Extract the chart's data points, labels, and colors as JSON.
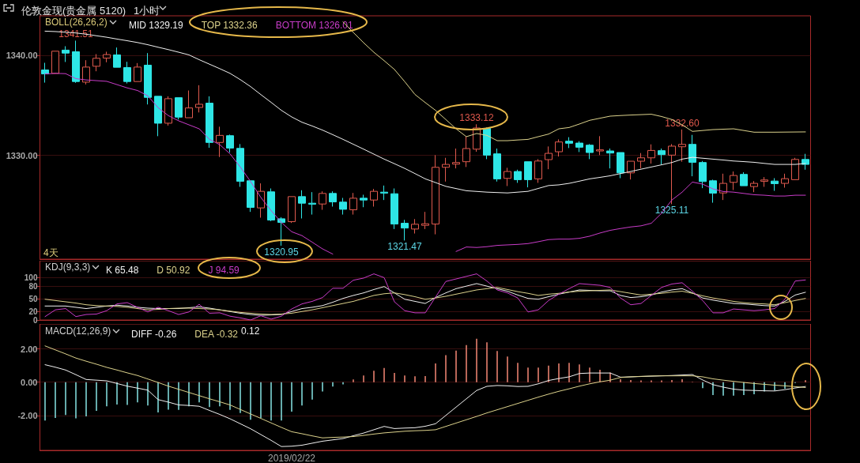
{
  "chart_data": [
    {
      "type": "candlestick",
      "title": "伦敦金现(贵金属 5120)",
      "subtitle": "1小时",
      "categories": [
        null,
        null,
        null,
        null,
        null,
        null,
        null,
        null,
        null,
        null,
        null,
        null,
        null,
        null,
        null,
        null,
        null,
        null,
        null,
        null,
        null,
        null,
        null,
        null,
        null,
        null,
        null,
        null,
        null,
        null,
        null,
        null,
        null,
        null,
        null,
        null,
        null,
        null,
        null,
        null,
        null,
        null,
        null,
        null,
        null,
        null,
        null,
        null,
        null,
        null,
        null,
        null,
        null,
        null,
        null,
        null,
        null,
        null,
        null,
        null,
        null,
        null,
        null,
        null,
        null,
        null,
        null,
        null,
        null,
        null,
        null,
        null,
        null,
        null,
        null
      ],
      "ohlc": [
        [
          1338.57,
          1339.29,
          1337.3,
          1338.17
        ],
        [
          1338.23,
          1340.45,
          1338.2,
          1340.45
        ],
        [
          1340.56,
          1340.95,
          1339.37,
          1340.26
        ],
        [
          1340.4,
          1341.51,
          1337.28,
          1337.41
        ],
        [
          1337.35,
          1339.55,
          1337.12,
          1338.86
        ],
        [
          1338.94,
          1340.16,
          1338.44,
          1339.74
        ],
        [
          1339.76,
          1340.4,
          1339.34,
          1340.11
        ],
        [
          1340.08,
          1340.82,
          1338.84,
          1338.84
        ],
        [
          1338.81,
          1339.39,
          1337.22,
          1337.41
        ],
        [
          1337.41,
          1339.26,
          1337.41,
          1338.86
        ],
        [
          1339.05,
          1340.26,
          1335.11,
          1335.82
        ],
        [
          1335.93,
          1335.93,
          1331.93,
          1333.23
        ],
        [
          1333.23,
          1335.93,
          1332.99,
          1335.69
        ],
        [
          1335.79,
          1335.79,
          1333.6,
          1333.84
        ],
        [
          1333.78,
          1336.51,
          1333.78,
          1334.76
        ],
        [
          1334.81,
          1337.04,
          1334.31,
          1335.13
        ],
        [
          1335.24,
          1335.93,
          1330.77,
          1331.3
        ],
        [
          1331.3,
          1332.88,
          1329.84,
          1332.01
        ],
        [
          1331.98,
          1332.09,
          1330.29,
          1330.74
        ],
        [
          1330.71,
          1331.14,
          1326.85,
          1327.41
        ],
        [
          1327.46,
          1327.46,
          1324.34,
          1324.79
        ],
        [
          1324.74,
          1327.2,
          1323.76,
          1326.4
        ],
        [
          1326.35,
          1326.69,
          1323.41,
          1323.52
        ],
        [
          1323.65,
          1323.81,
          1320.95,
          1323.28
        ],
        [
          1323.36,
          1325.87,
          1323.23,
          1325.87
        ],
        [
          1325.87,
          1326.51,
          1323.68,
          1325.21
        ],
        [
          1325.21,
          1326.32,
          1324.07,
          1325.11
        ],
        [
          1325.13,
          1326.4,
          1324.55,
          1326.19
        ],
        [
          1326.19,
          1326.4,
          1324.87,
          1325.34
        ],
        [
          1325.32,
          1325.74,
          1324.07,
          1324.6
        ],
        [
          1324.55,
          1326.24,
          1324.07,
          1325.71
        ],
        [
          1325.71,
          1326.06,
          1324.81,
          1325.53
        ],
        [
          1325.53,
          1326.64,
          1324.87,
          1326.4
        ],
        [
          1326.32,
          1326.98,
          1325.53,
          1326.22
        ],
        [
          1326.16,
          1326.69,
          1322.62,
          1323.12
        ],
        [
          1323.2,
          1323.54,
          1321.47,
          1322.72
        ],
        [
          1322.62,
          1323.62,
          1322.17,
          1323.1
        ],
        [
          1322.99,
          1324.34,
          1322.62,
          1323.15
        ],
        [
          1323.12,
          1330.03,
          1322.09,
          1328.81
        ],
        [
          1328.81,
          1329.76,
          1327.38,
          1329.1
        ],
        [
          1329.13,
          1330.69,
          1328.7,
          1329.29
        ],
        [
          1329.37,
          1331.88,
          1328.84,
          1330.69
        ],
        [
          1330.63,
          1333.12,
          1330.37,
          1332.75
        ],
        [
          1332.72,
          1332.8,
          1329.63,
          1330.03
        ],
        [
          1330.16,
          1330.69,
          1327.38,
          1327.65
        ],
        [
          1327.7,
          1328.76,
          1326.93,
          1328.39
        ],
        [
          1328.39,
          1328.57,
          1327.25,
          1327.57
        ],
        [
          1329.37,
          1329.37,
          1326.8,
          1327.57
        ],
        [
          1327.65,
          1329.63,
          1327.25,
          1329.44
        ],
        [
          1329.58,
          1330.9,
          1328.62,
          1330.21
        ],
        [
          1330.37,
          1331.61,
          1329.89,
          1331.35
        ],
        [
          1331.43,
          1331.83,
          1330.74,
          1331.22
        ],
        [
          1331.24,
          1331.43,
          1330.34,
          1330.82
        ],
        [
          1331.03,
          1331.14,
          1329.63,
          1330.29
        ],
        [
          1330.45,
          1331.93,
          1330.03,
          1330.56
        ],
        [
          1330.45,
          1330.69,
          1328.7,
          1330.24
        ],
        [
          1330.29,
          1330.29,
          1327.72,
          1328.25
        ],
        [
          1328.25,
          1329.42,
          1327.59,
          1329.42
        ],
        [
          1329.42,
          1330.24,
          1328.7,
          1329.76
        ],
        [
          1329.76,
          1331.11,
          1329.18,
          1330.5
        ],
        [
          1330.48,
          1330.69,
          1329.1,
          1330.08
        ],
        [
          1330.03,
          1331.14,
          1325.11,
          1330.93
        ],
        [
          1330.87,
          1332.6,
          1329.37,
          1331.11
        ],
        [
          1331.11,
          1332.06,
          1327.91,
          1329.31
        ],
        [
          1329.29,
          1329.44,
          1326.72,
          1327.38
        ],
        [
          1327.46,
          1327.57,
          1325.26,
          1326.22
        ],
        [
          1326.24,
          1328.17,
          1325.53,
          1327.2
        ],
        [
          1327.3,
          1328.39,
          1326.53,
          1327.99
        ],
        [
          1328.1,
          1328.31,
          1326.96,
          1326.96
        ],
        [
          1326.88,
          1327.43,
          1326.32,
          1327.2
        ],
        [
          1327.41,
          1327.83,
          1326.85,
          1327.54
        ],
        [
          1327.43,
          1327.72,
          1326.45,
          1327.17
        ],
        [
          1327.2,
          1328.17,
          1326.77,
          1327.67
        ],
        [
          1327.57,
          1329.76,
          1327.57,
          1329.6
        ],
        [
          1329.6,
          1330.16,
          1328.57,
          1329.1
        ]
      ],
      "colors": [
        "#2ee6e6",
        "#e05a4e",
        "#2ee6e6",
        "#2ee6e6",
        "#e05a4e",
        "#e05a4e",
        "#e05a4e",
        "#2ee6e6",
        "#2ee6e6",
        "#e05a4e",
        "#2ee6e6",
        "#2ee6e6",
        "#e05a4e",
        "#2ee6e6",
        "#e05a4e",
        "#e05a4e",
        "#2ee6e6",
        "#e05a4e",
        "#2ee6e6",
        "#2ee6e6",
        "#2ee6e6",
        "#e05a4e",
        "#2ee6e6",
        "#2ee6e6",
        "#e05a4e",
        "#2ee6e6",
        "#2ee6e6",
        "#e05a4e",
        "#2ee6e6",
        "#2ee6e6",
        "#e05a4e",
        "#2ee6e6",
        "#e05a4e",
        "#2ee6e6",
        "#2ee6e6",
        "#2ee6e6",
        "#e05a4e",
        "#e05a4e",
        "#e05a4e",
        "#e05a4e",
        "#e05a4e",
        "#e05a4e",
        "#e05a4e",
        "#2ee6e6",
        "#2ee6e6",
        "#e05a4e",
        "#2ee6e6",
        "#2ee6e6",
        "#e05a4e",
        "#e05a4e",
        "#e05a4e",
        "#2ee6e6",
        "#2ee6e6",
        "#2ee6e6",
        "#e05a4e",
        "#2ee6e6",
        "#2ee6e6",
        "#e05a4e",
        "#e05a4e",
        "#e05a4e",
        "#2ee6e6",
        "#e05a4e",
        "#e05a4e",
        "#2ee6e6",
        "#2ee6e6",
        "#2ee6e6",
        "#e05a4e",
        "#e05a4e",
        "#2ee6e6",
        "#e05a4e",
        "#e05a4e",
        "#2ee6e6",
        "#e05a4e",
        "#e05a4e",
        "#2ee6e6"
      ],
      "series": [
        {
          "name": "MID 1329.19",
          "type": "line",
          "color": "#f0f0f0",
          "values": [
            1342.46,
            1342.42,
            1342.35,
            1342.28,
            1342.15,
            1342.0,
            1341.85,
            1341.67,
            1341.5,
            1341.32,
            1341.1,
            1340.85,
            1340.61,
            1340.35,
            1340.08,
            1339.6,
            1339.15,
            1338.7,
            1338.23,
            1337.6,
            1336.9,
            1336.1,
            1335.32,
            1334.52,
            1333.86,
            1333.33,
            1332.95,
            1332.54,
            1332.08,
            1331.61,
            1331.12,
            1330.63,
            1330.13,
            1329.63,
            1329.17,
            1328.7,
            1328.18,
            1327.65,
            1327.28,
            1326.9,
            1326.68,
            1326.46,
            1326.39,
            1326.32,
            1326.28,
            1326.24,
            1326.32,
            1326.4,
            1326.69,
            1326.98,
            1327.05,
            1327.2,
            1327.42,
            1327.65,
            1327.8,
            1327.96,
            1328.18,
            1328.39,
            1328.62,
            1328.84,
            1329.06,
            1329.29,
            1329.63,
            1329.81,
            1329.72,
            1329.63,
            1329.54,
            1329.44,
            1329.38,
            1329.31,
            1329.2,
            1329.1,
            1329.1,
            1329.1,
            1329.19
          ]
        },
        {
          "name": "TOP 1332.36",
          "type": "line",
          "color": "#dcd28c",
          "values": [
            null,
            null,
            null,
            null,
            null,
            null,
            null,
            null,
            null,
            null,
            null,
            null,
            null,
            null,
            null,
            null,
            null,
            null,
            null,
            null,
            null,
            null,
            null,
            null,
            null,
            null,
            null,
            null,
            null,
            1343.39,
            1342.33,
            1341.3,
            1340.34,
            1339.5,
            1338.62,
            1337.4,
            1336.11,
            1335.3,
            1334.52,
            1333.6,
            1332.67,
            1331.88,
            1332.2,
            1332.01,
            1331.48,
            1331.48,
            1331.55,
            1331.61,
            1331.88,
            1332.14,
            1332.67,
            1332.8,
            1333.15,
            1333.52,
            1333.73,
            1333.94,
            1334.0,
            1334.05,
            1334.09,
            1334.13,
            1333.9,
            1333.6,
            1333.07,
            1332.41,
            1332.5,
            1332.59,
            1332.63,
            1332.67,
            1332.5,
            1332.33,
            1332.33,
            1332.33,
            1332.34,
            1332.35,
            1332.36
          ]
        },
        {
          "name": "BOTTOM 1326.01",
          "type": "line",
          "color": "#c83cc8",
          "values": [
            1338.17,
            1338.23,
            1338.2,
            1337.7,
            1337.57,
            1337.5,
            1337.43,
            1337.1,
            1336.77,
            1336.51,
            1335.98,
            1334.79,
            1333.99,
            1333.47,
            1333.07,
            1332.67,
            1331.61,
            1331.08,
            1330.16,
            1328.84,
            1327.38,
            1325.79,
            1324.47,
            1323.28,
            1322.35,
            1321.96,
            1321.3,
            1320.63,
            1320.11,
            null,
            null,
            null,
            null,
            null,
            null,
            null,
            null,
            null,
            null,
            null,
            1320.37,
            1320.82,
            1320.77,
            1320.85,
            1320.98,
            1321.03,
            1321.08,
            1321.16,
            1321.35,
            1321.56,
            1321.61,
            1321.61,
            1321.69,
            1321.9,
            1322.22,
            1322.49,
            1322.67,
            1322.83,
            1322.94,
            1323.2,
            1324.21,
            1325.53,
            1326.32,
            1327.33,
            1327.12,
            1326.64,
            1326.38,
            1326.32,
            1326.19,
            1326.06,
            1326.01,
            1325.93,
            1325.93,
            1326.01,
            1326.01
          ]
        }
      ],
      "ylim": [
        1319.6,
        1344.0
      ],
      "yticks": [
        {
          "value": 1330,
          "label": "1330.00"
        },
        {
          "value": 1340,
          "label": "1340.00"
        }
      ],
      "annotations": [
        "BOLL(26,26,2)",
        "4天",
        {
          "text": "1341.51",
          "y": 1341.51
        },
        {
          "text": "1333.12",
          "y": 1333.12
        },
        {
          "text": "1332.60",
          "y": 1332.6
        },
        {
          "text": "1320.95",
          "y": 1320.95
        },
        {
          "text": "1321.47",
          "y": 1321.47
        },
        {
          "text": "1325.11",
          "y": 1325.11
        }
      ],
      "grid": "y",
      "legend": "top left",
      "tick_labels": "y",
      "marker": "none",
      "line_style": "solid"
    },
    {
      "type": "line",
      "categories": [
        null,
        null,
        null,
        null,
        null,
        null,
        null,
        null,
        null,
        null,
        null,
        null,
        null,
        null,
        null,
        null,
        null,
        null,
        null,
        null,
        null,
        null,
        null,
        null,
        null,
        null,
        null,
        null,
        null,
        null,
        null,
        null,
        null,
        null,
        null,
        null,
        null,
        null,
        null,
        null,
        null,
        null,
        null,
        null,
        null,
        null,
        null,
        null,
        null,
        null,
        null,
        null,
        null,
        null,
        null,
        null,
        null,
        null,
        null,
        null,
        null,
        null,
        null,
        null,
        null,
        null,
        null,
        null,
        null,
        null,
        null,
        null,
        null,
        null,
        null
      ],
      "series": [
        {
          "name": "K 65.48",
          "color": "#f0f0f0",
          "values": [
            33,
            33,
            33,
            30,
            27,
            30,
            33,
            35,
            33,
            30,
            28,
            27,
            27,
            27,
            29,
            31,
            28,
            24,
            20,
            16,
            13,
            11,
            12,
            13,
            20,
            27,
            30,
            34,
            42,
            51,
            58,
            64,
            72,
            79,
            64,
            49,
            44,
            39,
            53,
            64,
            74,
            80,
            86,
            80,
            74,
            68,
            59,
            51,
            49,
            55,
            61,
            66,
            71,
            70,
            69,
            69,
            58,
            53,
            55,
            59,
            66,
            71,
            74,
            64,
            52,
            47,
            43,
            39,
            38,
            36,
            34,
            33,
            44,
            59,
            65.48
          ]
        },
        {
          "name": "D 50.92",
          "color": "#dcd28c",
          "values": [
            49,
            46,
            43,
            40,
            36,
            34,
            33,
            32,
            30,
            27,
            24,
            25,
            27,
            28,
            28,
            27,
            26,
            24,
            21,
            18,
            16,
            14,
            13,
            14,
            16,
            20,
            24,
            29,
            34,
            39,
            44,
            51,
            58,
            62,
            64,
            60,
            55,
            49,
            52,
            56,
            61,
            66,
            71,
            74,
            77,
            72,
            67,
            63,
            58,
            61,
            63,
            66,
            68,
            69,
            70,
            71,
            67,
            63,
            59,
            61,
            63,
            66,
            68,
            63,
            57,
            52,
            48,
            44,
            41,
            39,
            38,
            36,
            41,
            46,
            50.92
          ]
        },
        {
          "name": "J 94.59",
          "color": "#c83cc8",
          "values": [
            8,
            24,
            27,
            8,
            13,
            14,
            22,
            38,
            41,
            30,
            19,
            30,
            22,
            13,
            19,
            37,
            16,
            17,
            9,
            5,
            0,
            10,
            2,
            9,
            26,
            38,
            44,
            53,
            75,
            75,
            94,
            99,
            109,
            100,
            43,
            22,
            17,
            17,
            54,
            91,
            97,
            103,
            109,
            92,
            71,
            64,
            52,
            19,
            24,
            46,
            61,
            74,
            86,
            84,
            82,
            77,
            52,
            36,
            39,
            58,
            77,
            85,
            88,
            68,
            46,
            17,
            17,
            26,
            24,
            22,
            24,
            27,
            49,
            92,
            94.59
          ]
        }
      ],
      "ylim": [
        0,
        140
      ],
      "yticks": [
        0,
        20,
        50,
        80,
        100
      ],
      "annotations": [
        "KDJ(9,3,3)"
      ],
      "grid": "y",
      "legend": "top left",
      "tick_labels": "y",
      "marker": "none",
      "line_style": "solid"
    },
    {
      "type": "bar",
      "categories": [
        null,
        null,
        null,
        null,
        null,
        null,
        null,
        null,
        null,
        null,
        null,
        null,
        null,
        null,
        null,
        null,
        null,
        null,
        null,
        null,
        null,
        null,
        null,
        null,
        "2019/02/22",
        null,
        null,
        null,
        null,
        null,
        null,
        null,
        null,
        null,
        null,
        null,
        null,
        null,
        null,
        null,
        null,
        null,
        null,
        null,
        null,
        null,
        null,
        null,
        null,
        null,
        null,
        null,
        null,
        null,
        null,
        null,
        null,
        null,
        null,
        null,
        null,
        null,
        null,
        null,
        null,
        null,
        null,
        null,
        null,
        null,
        null,
        null,
        null,
        null,
        null
      ],
      "series": [
        {
          "type": "bar",
          "colors": [
            "#7fd8d8",
            "#7fd8d8",
            "#7fd8d8",
            "#7fd8d8",
            "#7fd8d8",
            "#7fd8d8",
            "#7fd8d8",
            "#7fd8d8",
            "#7fd8d8",
            "#7fd8d8",
            "#7fd8d8",
            "#7fd8d8",
            "#7fd8d8",
            "#7fd8d8",
            "#7fd8d8",
            "#7fd8d8",
            "#7fd8d8",
            "#7fd8d8",
            "#7fd8d8",
            "#7fd8d8",
            "#7fd8d8",
            "#7fd8d8",
            "#7fd8d8",
            "#7fd8d8",
            "#7fd8d8",
            "#7fd8d8",
            "#7fd8d8",
            "#7fd8d8",
            "#7fd8d8",
            "#7fd8d8",
            "#e8806f",
            "#e8806f",
            "#e8806f",
            "#e8806f",
            "#e8806f",
            "#e8806f",
            "#e8806f",
            "#e8806f",
            "#e8806f",
            "#e8806f",
            "#e8806f",
            "#e8806f",
            "#e8806f",
            "#e8806f",
            "#e8806f",
            "#e8806f",
            "#e8806f",
            "#e8806f",
            "#e8806f",
            "#e8806f",
            "#e8806f",
            "#e8806f",
            "#e8806f",
            "#e8806f",
            "#e8806f",
            "#e8806f",
            "#e8806f",
            "#e8806f",
            "#e8806f",
            "#e8806f",
            "#e8806f",
            "#e8806f",
            "#e8806f",
            "#e8806f",
            "#7fd8d8",
            "#7fd8d8",
            "#7fd8d8",
            "#7fd8d8",
            "#7fd8d8",
            "#7fd8d8",
            "#7fd8d8",
            "#7fd8d8",
            "#7fd8d8",
            "#7fd8d8",
            "#e8806f"
          ],
          "values": [
            -2.31,
            -2.15,
            -1.98,
            -2.18,
            -2.06,
            -1.73,
            -1.45,
            -1.34,
            -1.37,
            -1.21,
            -1.4,
            -1.82,
            -1.65,
            -1.66,
            -1.45,
            -1.21,
            -1.5,
            -1.45,
            -1.66,
            -1.85,
            -2.26,
            -2.15,
            -2.31,
            -2.31,
            -1.77,
            -1.4,
            -1.05,
            -0.56,
            -0.27,
            -0.13,
            0.16,
            0.4,
            0.69,
            0.85,
            0.56,
            0.4,
            0.35,
            0.37,
            1.12,
            1.62,
            1.9,
            2.23,
            2.61,
            2.4,
            1.87,
            1.54,
            1.16,
            0.88,
            0.88,
            0.99,
            1.12,
            1.16,
            1.07,
            0.88,
            0.74,
            0.58,
            0.18,
            0.13,
            0.1,
            0.1,
            0.1,
            0.13,
            0.17,
            0.02,
            -0.36,
            -0.78,
            -0.81,
            -0.81,
            -0.78,
            -0.73,
            -0.56,
            -0.5,
            -0.4,
            -0.05,
            0.12
          ]
        },
        {
          "name": "DIFF -0.26",
          "type": "line",
          "color": "#f0f0f0",
          "values": [
            1.05,
            0.9,
            0.73,
            0.45,
            0.16,
            0.12,
            0.08,
            -0.08,
            -0.24,
            -0.36,
            -0.48,
            -1.05,
            -1.2,
            -1.37,
            -1.4,
            -1.45,
            -1.7,
            -1.94,
            -2.2,
            -2.5,
            -2.8,
            -3.15,
            -3.5,
            -3.87,
            -3.85,
            -3.79,
            -3.67,
            -3.55,
            -3.47,
            -3.39,
            -3.22,
            -3.06,
            -2.86,
            -2.66,
            -2.79,
            -2.76,
            -2.74,
            -2.65,
            -2.5,
            -2.0,
            -1.5,
            -1.0,
            -0.5,
            -0.25,
            -0.2,
            -0.22,
            -0.26,
            -0.25,
            -0.1,
            0.1,
            0.22,
            0.32,
            0.52,
            0.55,
            0.55,
            0.55,
            0.3,
            0.32,
            0.34,
            0.36,
            0.38,
            0.4,
            0.43,
            0.46,
            0.13,
            -0.15,
            -0.3,
            -0.42,
            -0.48,
            -0.5,
            -0.52,
            -0.53,
            -0.45,
            -0.35,
            -0.26
          ]
        },
        {
          "name": "DEA -0.32",
          "type": "line",
          "color": "#dcd28c",
          "values": [
            2.18,
            1.94,
            1.7,
            1.45,
            1.26,
            1.08,
            0.89,
            0.73,
            0.56,
            0.4,
            0.19,
            -0.02,
            -0.24,
            -0.43,
            -0.62,
            -0.81,
            -1.0,
            -1.18,
            -1.37,
            -1.64,
            -1.91,
            -2.18,
            -2.45,
            -2.72,
            -2.98,
            -3.1,
            -3.23,
            -3.35,
            -3.32,
            -3.3,
            -3.27,
            -3.2,
            -3.12,
            -3.05,
            -3.0,
            -2.95,
            -2.92,
            -2.9,
            -2.86,
            -2.66,
            -2.46,
            -2.26,
            -2.06,
            -1.85,
            -1.66,
            -1.47,
            -1.28,
            -1.09,
            -0.9,
            -0.72,
            -0.55,
            -0.4,
            -0.24,
            -0.1,
            0.02,
            0.12,
            0.28,
            0.32,
            0.35,
            0.37,
            0.38,
            0.38,
            0.38,
            0.38,
            0.32,
            0.2,
            0.12,
            0.05,
            -0.02,
            -0.08,
            -0.13,
            -0.18,
            -0.22,
            -0.27,
            -0.32
          ]
        }
      ],
      "ylim": [
        -4.1,
        3.5
      ],
      "yticks": [
        {
          "value": -2,
          "label": "-2.00"
        },
        {
          "value": 0,
          "label": "0.00"
        },
        {
          "value": 2,
          "label": "2.00"
        }
      ],
      "annotations": [
        "MACD(12,26,9)",
        "0.12"
      ],
      "grid": "y",
      "legend": "top left",
      "marker": "none",
      "line_style": "solid"
    }
  ]
}
